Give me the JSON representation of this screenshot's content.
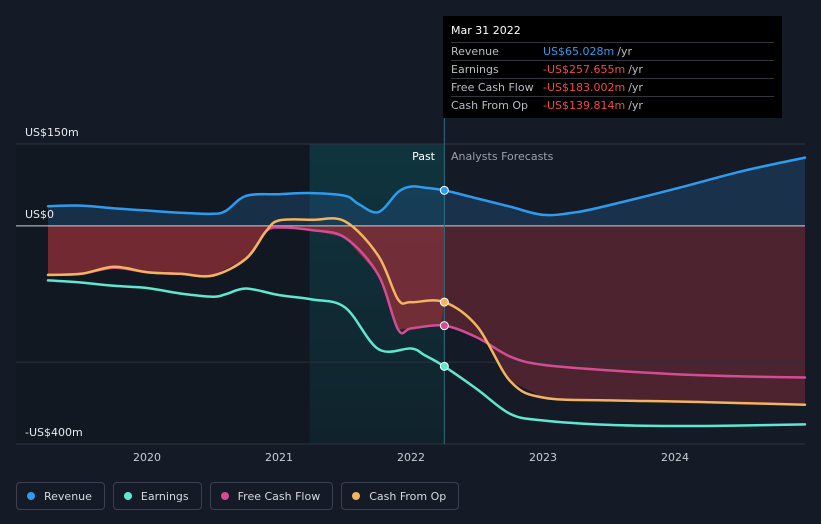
{
  "chart_data": {
    "type": "line",
    "y_top_label": "US$150m",
    "y_zero_label": "US$0",
    "y_bottom_label": "-US$400m",
    "ylim": [
      -400,
      150
    ],
    "xlim": [
      2019.25,
      2024.98
    ],
    "x_ticks": [
      "2020",
      "2021",
      "2022",
      "2023",
      "2024"
    ],
    "past_label": "Past",
    "forecast_label": "Analysts Forecasts",
    "highlight_range": [
      2021.23,
      2022.25
    ],
    "divider_x": 2022.25,
    "series": [
      {
        "name": "Revenue",
        "color": "#2d9cf0",
        "x": [
          2019.25,
          2019.5,
          2019.75,
          2020.0,
          2020.25,
          2020.5,
          2020.6,
          2020.75,
          2021.0,
          2021.25,
          2021.5,
          2021.6,
          2021.75,
          2021.9,
          2022.0,
          2022.1,
          2022.25,
          2022.5,
          2022.75,
          2023.0,
          2023.25,
          2023.5,
          2024.0,
          2024.5,
          2024.98
        ],
        "y": [
          36,
          37,
          32,
          28,
          24,
          22,
          28,
          55,
          58,
          60,
          55,
          40,
          25,
          62,
          72,
          70,
          65,
          50,
          35,
          20,
          25,
          38,
          68,
          100,
          125
        ]
      },
      {
        "name": "Earnings",
        "color": "#5ee8d0",
        "x": [
          2019.25,
          2019.5,
          2019.75,
          2020.0,
          2020.25,
          2020.5,
          2020.6,
          2020.75,
          2021.0,
          2021.25,
          2021.5,
          2021.75,
          2022.0,
          2022.1,
          2022.25,
          2022.5,
          2022.75,
          2023.0,
          2023.5,
          2024.0,
          2024.5,
          2024.98
        ],
        "y": [
          -100,
          -104,
          -110,
          -114,
          -124,
          -130,
          -125,
          -115,
          -127,
          -135,
          -150,
          -226,
          -225,
          -237,
          -257.655,
          -300,
          -345,
          -357,
          -365,
          -367,
          -366,
          -364
        ]
      },
      {
        "name": "Free Cash Flow",
        "color": "#d34d94",
        "x": [
          2019.25,
          2019.5,
          2019.75,
          2020.0,
          2020.25,
          2020.5,
          2020.75,
          2020.9,
          2021.0,
          2021.25,
          2021.5,
          2021.75,
          2021.9,
          2022.0,
          2022.25,
          2022.5,
          2022.75,
          2023.0,
          2023.5,
          2024.0,
          2024.5,
          2024.98
        ],
        "y": [
          -90,
          -88,
          -77,
          -85,
          -88,
          -91,
          -60,
          -10,
          -3,
          -8,
          -22,
          -90,
          -190,
          -188,
          -183.002,
          -205,
          -240,
          -255,
          -265,
          -272,
          -276,
          -278
        ]
      },
      {
        "name": "Cash From Op",
        "color": "#f3b45e",
        "x": [
          2019.25,
          2019.5,
          2019.75,
          2020.0,
          2020.25,
          2020.5,
          2020.75,
          2020.9,
          2021.0,
          2021.25,
          2021.5,
          2021.75,
          2021.9,
          2022.0,
          2022.25,
          2022.5,
          2022.75,
          2023.0,
          2023.5,
          2024.0,
          2024.5,
          2024.98
        ],
        "y": [
          -90,
          -88,
          -75,
          -85,
          -88,
          -91,
          -60,
          -10,
          10,
          11,
          8,
          -55,
          -135,
          -140,
          -139.814,
          -185,
          -285,
          -315,
          -320,
          -322,
          -325,
          -328
        ]
      }
    ]
  },
  "tooltip": {
    "date": "Mar 31 2022",
    "rows": [
      {
        "label": "Revenue",
        "value": "US$65.028m",
        "unit": "/yr"
      },
      {
        "label": "Earnings",
        "value": "-US$257.655m",
        "unit": "/yr"
      },
      {
        "label": "Free Cash Flow",
        "value": "-US$183.002m",
        "unit": "/yr"
      },
      {
        "label": "Cash From Op",
        "value": "-US$139.814m",
        "unit": "/yr"
      }
    ]
  },
  "legend": [
    {
      "label": "Revenue",
      "color": "#2d9cf0"
    },
    {
      "label": "Earnings",
      "color": "#5ee8d0"
    },
    {
      "label": "Free Cash Flow",
      "color": "#d34d94"
    },
    {
      "label": "Cash From Op",
      "color": "#f3b45e"
    }
  ]
}
